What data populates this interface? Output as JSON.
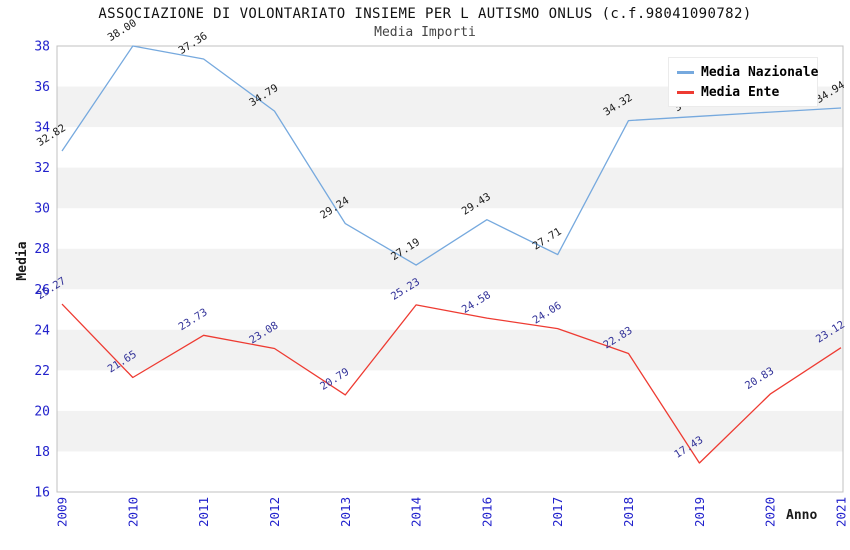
{
  "chart_data": {
    "type": "line",
    "title": "ASSOCIAZIONE DI VOLONTARIATO INSIEME PER L AUTISMO ONLUS (c.f.98041090782)",
    "subtitle": "Media Importi",
    "xlabel": "Anno",
    "ylabel": "Media",
    "ylim": [
      16,
      38
    ],
    "ytick_step": 2,
    "grid": "horizontal-bands",
    "legend_position": "top-right",
    "categories": [
      "2009",
      "2010",
      "2011",
      "2012",
      "2013",
      "2014",
      "2016",
      "2017",
      "2018",
      "2019",
      "2020",
      "2021"
    ],
    "series": [
      {
        "name": "Media Nazionale",
        "color": "#76a9de",
        "label_color": "#1c1c1c",
        "values": [
          32.82,
          38.0,
          37.36,
          34.79,
          29.24,
          27.19,
          29.43,
          27.71,
          34.32,
          34.53,
          34.74,
          34.94
        ],
        "labels": [
          "32.82",
          "38.00",
          "37.36",
          "34.79",
          "29.24",
          "27.19",
          "29.43",
          "27.71",
          "34.32",
          "34.53",
          "34.74",
          "34.94"
        ]
      },
      {
        "name": "Media Ente",
        "color": "#ee3b32",
        "label_color": "#333399",
        "values": [
          25.27,
          21.65,
          23.73,
          23.08,
          20.79,
          25.23,
          24.58,
          24.06,
          22.83,
          17.43,
          20.83,
          23.12
        ],
        "labels": [
          "25.27",
          "21.65",
          "23.73",
          "23.08",
          "20.79",
          "25.23",
          "24.58",
          "24.06",
          "22.83",
          "17.43",
          "20.83",
          "23.12"
        ]
      }
    ],
    "colors": {
      "band": "#f2f2f2",
      "plot_border": "#c0c0c0",
      "tick_labels": "#2222cc"
    }
  }
}
